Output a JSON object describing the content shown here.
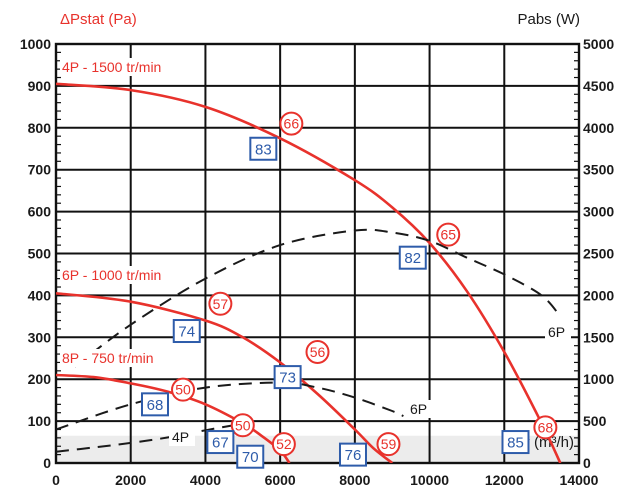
{
  "chart_data": {
    "type": "line",
    "y_left_label": "ΔPstat (Pa)",
    "y_right_label": "Pabs (W)",
    "x_label": "Qv (m³/h)",
    "xlim": [
      0,
      14000
    ],
    "ylim_left": [
      0,
      1000
    ],
    "ylim_right": [
      0,
      5000
    ],
    "x_ticks": [
      "0",
      "2000",
      "4000",
      "6000",
      "8000",
      "10000",
      "12000",
      "14000"
    ],
    "y_left_ticks": [
      "0",
      "100",
      "200",
      "300",
      "400",
      "500",
      "600",
      "700",
      "800",
      "900",
      "1000"
    ],
    "y_right_ticks": [
      "0",
      "500",
      "1000",
      "1500",
      "2000",
      "2500",
      "3000",
      "3500",
      "4000",
      "4500",
      "5000"
    ],
    "grid": true,
    "pressure_series": [
      {
        "name": "4P - 1500 tr/min",
        "color": "#e8322c",
        "points": [
          [
            0,
            905
          ],
          [
            2000,
            890
          ],
          [
            4000,
            850
          ],
          [
            6000,
            775
          ],
          [
            8000,
            675
          ],
          [
            9000,
            610
          ],
          [
            10000,
            525
          ],
          [
            11000,
            410
          ],
          [
            12000,
            265
          ],
          [
            13000,
            95
          ],
          [
            13500,
            0
          ]
        ]
      },
      {
        "name": "6P - 1000 tr/min",
        "color": "#e8322c",
        "points": [
          [
            0,
            405
          ],
          [
            2000,
            385
          ],
          [
            4000,
            340
          ],
          [
            5000,
            300
          ],
          [
            6000,
            240
          ],
          [
            7000,
            165
          ],
          [
            8000,
            80
          ],
          [
            8500,
            35
          ],
          [
            9000,
            0
          ]
        ]
      },
      {
        "name": "8P - 750 tr/min",
        "color": "#e8322c",
        "points": [
          [
            0,
            210
          ],
          [
            1000,
            205
          ],
          [
            2000,
            190
          ],
          [
            3000,
            170
          ],
          [
            4000,
            140
          ],
          [
            5000,
            95
          ],
          [
            5500,
            65
          ],
          [
            6000,
            30
          ],
          [
            6250,
            0
          ]
        ]
      }
    ],
    "power_series": [
      {
        "name": "4P",
        "color": "#1a1a1a",
        "dashed": true,
        "points": [
          [
            0,
            135
          ],
          [
            1000,
            185
          ],
          [
            2000,
            240
          ],
          [
            3000,
            305
          ],
          [
            4000,
            390
          ],
          [
            4800,
            455
          ]
        ]
      },
      {
        "name": "6P",
        "color": "#1a1a1a",
        "dashed": true,
        "points": [
          [
            500,
            1150
          ],
          [
            2000,
            1650
          ],
          [
            4000,
            2200
          ],
          [
            6000,
            2600
          ],
          [
            8000,
            2775
          ],
          [
            9000,
            2750
          ],
          [
            10000,
            2650
          ],
          [
            11000,
            2450
          ],
          [
            12000,
            2250
          ],
          [
            13000,
            2000
          ],
          [
            13500,
            1750
          ]
        ]
      },
      {
        "name": "6P",
        "color": "#1a1a1a",
        "dashed": true,
        "points": [
          [
            0,
            400
          ],
          [
            2000,
            700
          ],
          [
            4000,
            900
          ],
          [
            6000,
            960
          ],
          [
            7000,
            900
          ],
          [
            8000,
            780
          ],
          [
            9000,
            620
          ],
          [
            9300,
            560
          ]
        ]
      }
    ],
    "efficiency_markers": [
      {
        "label": "66",
        "x": 6300,
        "y": 810
      },
      {
        "label": "65",
        "x": 10500,
        "y": 545
      },
      {
        "label": "68",
        "x": 13100,
        "y": 85
      },
      {
        "label": "57",
        "x": 4400,
        "y": 380
      },
      {
        "label": "56",
        "x": 7000,
        "y": 265
      },
      {
        "label": "59",
        "x": 8900,
        "y": 45
      },
      {
        "label": "50",
        "x": 3400,
        "y": 175
      },
      {
        "label": "50",
        "x": 5000,
        "y": 90
      },
      {
        "label": "52",
        "x": 6100,
        "y": 45
      }
    ],
    "power_markers": [
      {
        "label": "83",
        "x": 5550,
        "y": 750
      },
      {
        "label": "82",
        "x": 9550,
        "y": 490
      },
      {
        "label": "85",
        "x": 12300,
        "y": 50
      },
      {
        "label": "74",
        "x": 3500,
        "y": 315
      },
      {
        "label": "73",
        "x": 6200,
        "y": 205
      },
      {
        "label": "76",
        "x": 7950,
        "y": 20
      },
      {
        "label": "68",
        "x": 2650,
        "y": 140
      },
      {
        "label": "67",
        "x": 4400,
        "y": 50
      },
      {
        "label": "70",
        "x": 5200,
        "y": 15
      }
    ],
    "shaded_band_top": 65
  }
}
